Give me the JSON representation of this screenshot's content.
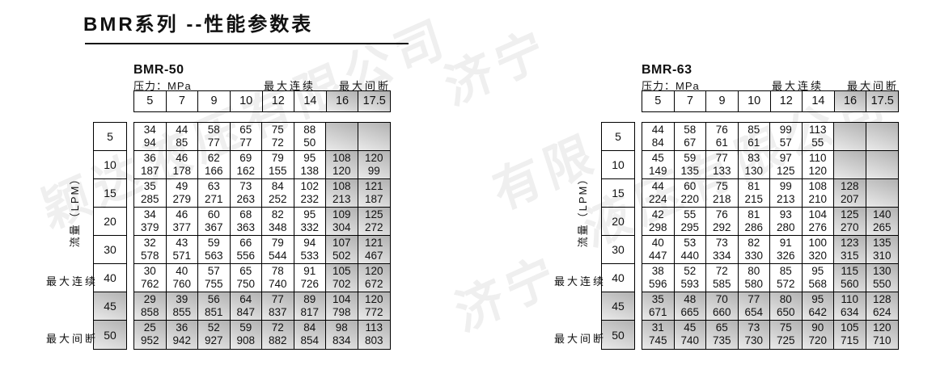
{
  "title": "BMR系列 --性能参数表",
  "watermarks": [
    {
      "text": "颖达液压有限公司"
    },
    {
      "text": "济宁"
    },
    {
      "text": "有限"
    },
    {
      "text": "济宁"
    },
    {
      "text": "液压有限公司"
    }
  ],
  "tables": [
    {
      "name": "BMR-50",
      "pressure_label": "压力：MPa",
      "max_continuous_label": "最大连续",
      "max_intermittent_label": "最大间断",
      "flow_axis_label": "流量（LPM）",
      "pressures": [
        "5",
        "7",
        "9",
        "10",
        "12",
        "14",
        "16",
        "17.5"
      ],
      "flows": [
        "5",
        "10",
        "15",
        "20",
        "30",
        "40",
        "45",
        "50"
      ],
      "shaded_col_start": 6,
      "shaded_row_start": 6,
      "cells": [
        [
          [
            "34",
            "94"
          ],
          [
            "44",
            "85"
          ],
          [
            "58",
            "77"
          ],
          [
            "65",
            "77"
          ],
          [
            "75",
            "72"
          ],
          [
            "88",
            "50"
          ],
          null,
          null
        ],
        [
          [
            "36",
            "187"
          ],
          [
            "46",
            "178"
          ],
          [
            "62",
            "166"
          ],
          [
            "69",
            "162"
          ],
          [
            "79",
            "155"
          ],
          [
            "95",
            "138"
          ],
          [
            "108",
            "120"
          ],
          [
            "120",
            "99"
          ]
        ],
        [
          [
            "35",
            "285"
          ],
          [
            "49",
            "279"
          ],
          [
            "63",
            "271"
          ],
          [
            "73",
            "263"
          ],
          [
            "84",
            "252"
          ],
          [
            "102",
            "232"
          ],
          [
            "108",
            "213"
          ],
          [
            "121",
            "187"
          ]
        ],
        [
          [
            "34",
            "379"
          ],
          [
            "46",
            "377"
          ],
          [
            "60",
            "367"
          ],
          [
            "68",
            "363"
          ],
          [
            "82",
            "348"
          ],
          [
            "95",
            "332"
          ],
          [
            "109",
            "304"
          ],
          [
            "125",
            "272"
          ]
        ],
        [
          [
            "32",
            "578"
          ],
          [
            "43",
            "571"
          ],
          [
            "59",
            "563"
          ],
          [
            "66",
            "556"
          ],
          [
            "79",
            "544"
          ],
          [
            "94",
            "533"
          ],
          [
            "107",
            "502"
          ],
          [
            "121",
            "467"
          ]
        ],
        [
          [
            "30",
            "762"
          ],
          [
            "40",
            "760"
          ],
          [
            "57",
            "755"
          ],
          [
            "65",
            "750"
          ],
          [
            "78",
            "740"
          ],
          [
            "91",
            "726"
          ],
          [
            "105",
            "702"
          ],
          [
            "120",
            "672"
          ]
        ],
        [
          [
            "29",
            "858"
          ],
          [
            "39",
            "855"
          ],
          [
            "56",
            "851"
          ],
          [
            "64",
            "847"
          ],
          [
            "77",
            "837"
          ],
          [
            "89",
            "817"
          ],
          [
            "104",
            "798"
          ],
          [
            "120",
            "772"
          ]
        ],
        [
          [
            "25",
            "952"
          ],
          [
            "36",
            "942"
          ],
          [
            "52",
            "927"
          ],
          [
            "59",
            "908"
          ],
          [
            "72",
            "882"
          ],
          [
            "84",
            "854"
          ],
          [
            "98",
            "834"
          ],
          [
            "113",
            "803"
          ]
        ]
      ]
    },
    {
      "name": "BMR-63",
      "pressure_label": "压力：MPa",
      "max_continuous_label": "最大连续",
      "max_intermittent_label": "最大间断",
      "flow_axis_label": "流量（LPM）",
      "pressures": [
        "5",
        "7",
        "9",
        "10",
        "12",
        "14",
        "16",
        "17.5"
      ],
      "flows": [
        "5",
        "10",
        "15",
        "20",
        "30",
        "40",
        "45",
        "50"
      ],
      "shaded_col_start": 6,
      "shaded_row_start": 6,
      "cells": [
        [
          [
            "44",
            "84"
          ],
          [
            "58",
            "67"
          ],
          [
            "76",
            "61"
          ],
          [
            "85",
            "61"
          ],
          [
            "99",
            "57"
          ],
          [
            "113",
            "55"
          ],
          null,
          null
        ],
        [
          [
            "45",
            "149"
          ],
          [
            "59",
            "135"
          ],
          [
            "77",
            "133"
          ],
          [
            "83",
            "130"
          ],
          [
            "97",
            "125"
          ],
          [
            "110",
            "120"
          ],
          null,
          null
        ],
        [
          [
            "44",
            "224"
          ],
          [
            "60",
            "220"
          ],
          [
            "75",
            "218"
          ],
          [
            "81",
            "215"
          ],
          [
            "99",
            "213"
          ],
          [
            "108",
            "210"
          ],
          [
            "128",
            "207"
          ],
          null
        ],
        [
          [
            "42",
            "298"
          ],
          [
            "55",
            "295"
          ],
          [
            "76",
            "292"
          ],
          [
            "81",
            "286"
          ],
          [
            "93",
            "280"
          ],
          [
            "104",
            "276"
          ],
          [
            "125",
            "270"
          ],
          [
            "140",
            "265"
          ]
        ],
        [
          [
            "40",
            "447"
          ],
          [
            "53",
            "440"
          ],
          [
            "73",
            "334"
          ],
          [
            "82",
            "330"
          ],
          [
            "91",
            "326"
          ],
          [
            "100",
            "320"
          ],
          [
            "123",
            "315"
          ],
          [
            "135",
            "310"
          ]
        ],
        [
          [
            "38",
            "596"
          ],
          [
            "52",
            "593"
          ],
          [
            "72",
            "585"
          ],
          [
            "80",
            "580"
          ],
          [
            "85",
            "572"
          ],
          [
            "95",
            "568"
          ],
          [
            "115",
            "560"
          ],
          [
            "130",
            "550"
          ]
        ],
        [
          [
            "35",
            "671"
          ],
          [
            "48",
            "665"
          ],
          [
            "70",
            "660"
          ],
          [
            "77",
            "654"
          ],
          [
            "80",
            "650"
          ],
          [
            "95",
            "642"
          ],
          [
            "110",
            "634"
          ],
          [
            "128",
            "624"
          ]
        ],
        [
          [
            "31",
            "745"
          ],
          [
            "45",
            "740"
          ],
          [
            "65",
            "735"
          ],
          [
            "73",
            "730"
          ],
          [
            "75",
            "725"
          ],
          [
            "90",
            "720"
          ],
          [
            "105",
            "715"
          ],
          [
            "120",
            "710"
          ]
        ]
      ]
    }
  ]
}
